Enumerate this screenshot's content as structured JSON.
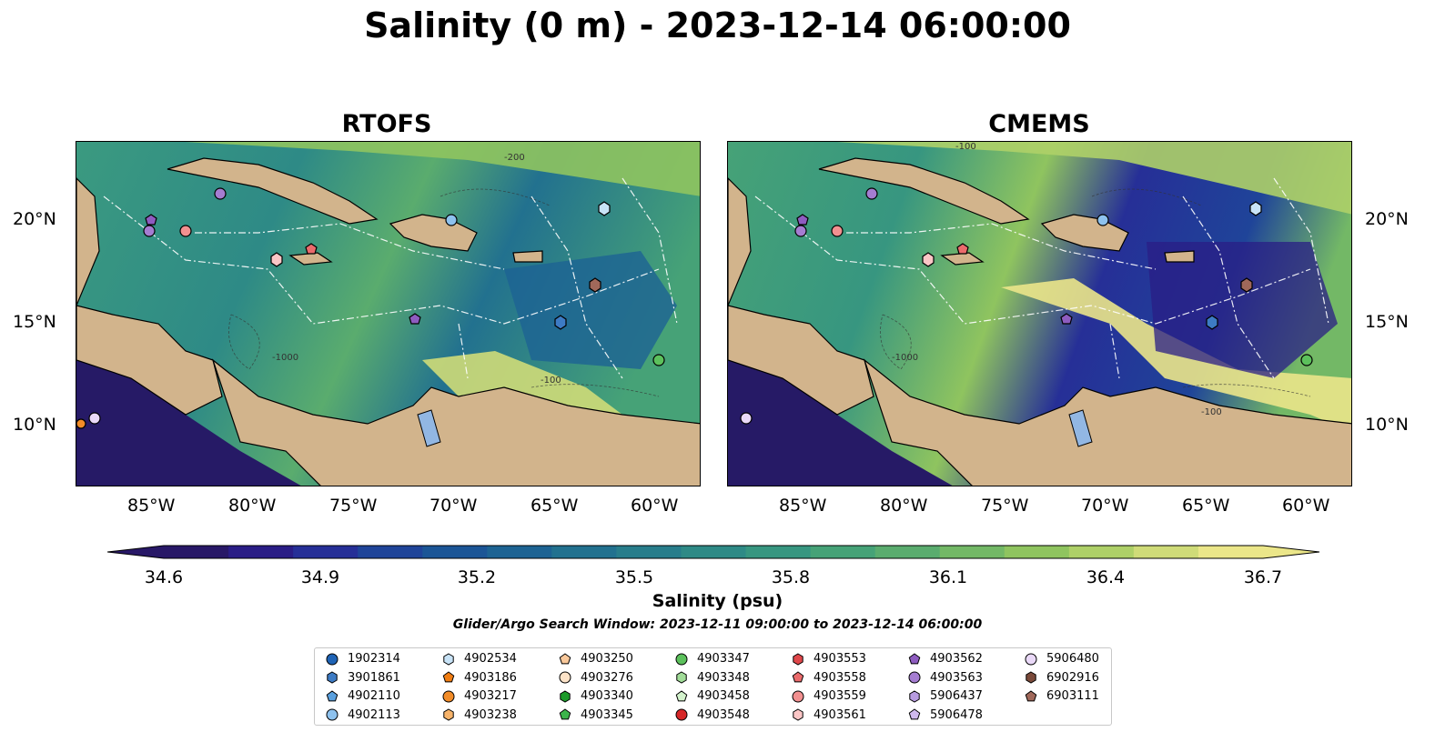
{
  "title": "Salinity (0 m) - 2023-12-14 06:00:00",
  "panels": [
    {
      "title": "RTOFS"
    },
    {
      "title": "CMEMS"
    }
  ],
  "lon_labels": [
    "85°W",
    "80°W",
    "75°W",
    "70°W",
    "65°W",
    "60°W"
  ],
  "lat_labels": [
    "20°N",
    "15°N",
    "10°N"
  ],
  "colorbar": {
    "ticks": [
      "34.6",
      "34.9",
      "35.2",
      "35.5",
      "35.8",
      "36.1",
      "36.4",
      "36.7"
    ],
    "label": "Salinity (psu)",
    "colors": [
      "#281867",
      "#2a1d86",
      "#262f97",
      "#1f4499",
      "#1b5596",
      "#1d6393",
      "#22718f",
      "#287d8b",
      "#2e8a86",
      "#379680",
      "#46a277",
      "#5aac6e",
      "#73b866",
      "#8fc45f",
      "#aed068",
      "#cfdb78",
      "#ebe689"
    ]
  },
  "contour_labels": [
    "-100",
    "-1000",
    "-200"
  ],
  "search_window": "Glider/Argo Search Window: 2023-12-11 09:00:00 to 2023-12-14 06:00:00",
  "legend": [
    {
      "id": "1902314",
      "shape": "circle",
      "color": "#1f63b5"
    },
    {
      "id": "3901861",
      "shape": "hexagon",
      "color": "#3d7bc4"
    },
    {
      "id": "4902110",
      "shape": "pentagon",
      "color": "#5aa0de"
    },
    {
      "id": "4902113",
      "shape": "circle",
      "color": "#8ec2ee"
    },
    {
      "id": "4902534",
      "shape": "hexagon",
      "color": "#c8e3f7"
    },
    {
      "id": "4903186",
      "shape": "pentagon",
      "color": "#f07d12"
    },
    {
      "id": "4903217",
      "shape": "circle",
      "color": "#f28c28"
    },
    {
      "id": "4903238",
      "shape": "hexagon",
      "color": "#f7b36a"
    },
    {
      "id": "4903250",
      "shape": "pentagon",
      "color": "#f9c89a"
    },
    {
      "id": "4903276",
      "shape": "circle",
      "color": "#fde3c8"
    },
    {
      "id": "4903340",
      "shape": "hexagon",
      "color": "#1c9a2a"
    },
    {
      "id": "4903345",
      "shape": "pentagon",
      "color": "#3cb44b"
    },
    {
      "id": "4903347",
      "shape": "circle",
      "color": "#5cc15c"
    },
    {
      "id": "4903348",
      "shape": "hexagon",
      "color": "#a1dc98"
    },
    {
      "id": "4903458",
      "shape": "pentagon",
      "color": "#d3f2cc"
    },
    {
      "id": "4903548",
      "shape": "circle",
      "color": "#d62728"
    },
    {
      "id": "4903553",
      "shape": "hexagon",
      "color": "#e0474a"
    },
    {
      "id": "4903558",
      "shape": "pentagon",
      "color": "#eb6b6c"
    },
    {
      "id": "4903559",
      "shape": "circle",
      "color": "#f29090"
    },
    {
      "id": "4903561",
      "shape": "hexagon",
      "color": "#fbc6c6"
    },
    {
      "id": "4903562",
      "shape": "pentagon",
      "color": "#8e5cc0"
    },
    {
      "id": "4903563",
      "shape": "circle",
      "color": "#a57dd1"
    },
    {
      "id": "5906437",
      "shape": "hexagon",
      "color": "#b79be0"
    },
    {
      "id": "5906478",
      "shape": "pentagon",
      "color": "#cfb9ee"
    },
    {
      "id": "5906480",
      "shape": "circle",
      "color": "#ead9f8"
    },
    {
      "id": "6902916",
      "shape": "hexagon",
      "color": "#7a4a3a"
    },
    {
      "id": "6903111",
      "shape": "pentagon",
      "color": "#a0685a"
    }
  ],
  "colors": {
    "land": "#d2b48c",
    "lake": "#92b7e3",
    "deep_pacific": "#261a66"
  }
}
